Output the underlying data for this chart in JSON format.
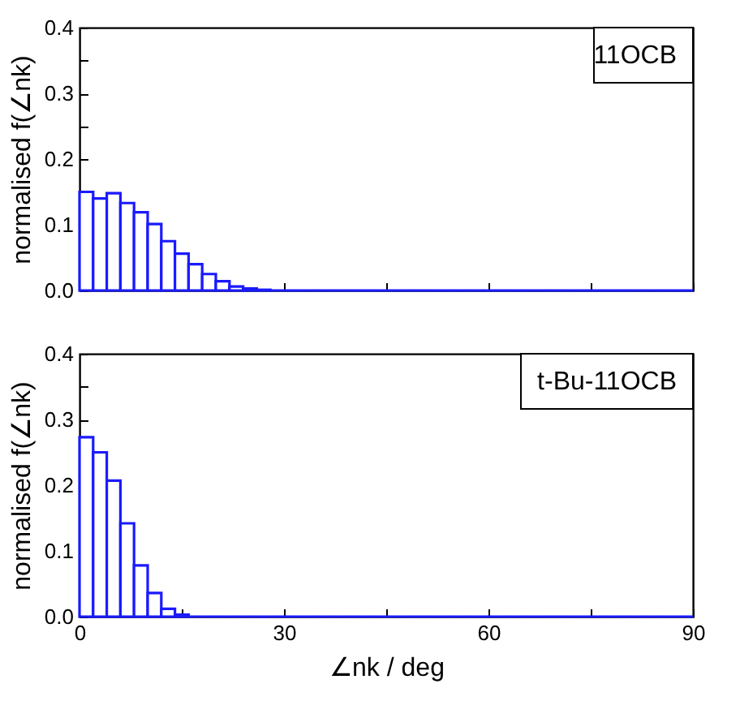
{
  "chart_data": [
    {
      "type": "histogram",
      "ylabel": "normalised f(∠nk)",
      "annotations": [
        "11OCB"
      ],
      "color": "#1a1aff",
      "bins": [
        0,
        2,
        4,
        6,
        8,
        10,
        12,
        14,
        16,
        18,
        20,
        22,
        24,
        26,
        28,
        30,
        32,
        34,
        36,
        38,
        40,
        42,
        44,
        46,
        48,
        50,
        52,
        54,
        56,
        58,
        60,
        62,
        64,
        66,
        68,
        70,
        72,
        74,
        76,
        78,
        80,
        82,
        84,
        86,
        88,
        90
      ],
      "values": [
        0.15,
        0.14,
        0.148,
        0.133,
        0.119,
        0.101,
        0.075,
        0.056,
        0.04,
        0.025,
        0.014,
        0.006,
        0.003,
        0.001,
        0,
        0,
        0,
        0,
        0,
        0,
        0,
        0,
        0,
        0,
        0,
        0,
        0,
        0,
        0,
        0,
        0,
        0,
        0,
        0,
        0,
        0,
        0,
        0,
        0,
        0,
        0,
        0,
        0,
        0,
        0
      ],
      "xlim": [
        0,
        90
      ],
      "xticks": [
        0,
        {
          "value": 15,
          "label": null
        },
        30,
        {
          "value": 45,
          "label": null
        },
        60,
        {
          "value": 75,
          "label": null
        },
        90
      ],
      "ylim": [
        0,
        0.4
      ],
      "yticks": [
        {
          "value": 0,
          "label": "0.0"
        },
        {
          "value": 0.05,
          "label": null
        },
        0.1,
        {
          "value": 0.15,
          "label": null
        },
        0.2,
        {
          "value": 0.25,
          "label": null
        },
        0.3,
        {
          "value": 0.35,
          "label": null
        },
        0.4
      ],
      "tick_labels": "y"
    },
    {
      "type": "histogram",
      "xlabel": "∠nk / deg",
      "ylabel": "normalised f(∠nk)",
      "annotations": [
        "t-Bu-11OCB"
      ],
      "color": "#1a1aff",
      "bins": [
        0,
        2,
        4,
        6,
        8,
        10,
        12,
        14,
        16,
        18,
        20,
        22,
        24,
        26,
        28,
        30,
        32,
        34,
        36,
        38,
        40,
        42,
        44,
        46,
        48,
        50,
        52,
        54,
        56,
        58,
        60,
        62,
        64,
        66,
        68,
        70,
        72,
        74,
        76,
        78,
        80,
        82,
        84,
        86,
        88,
        90
      ],
      "values": [
        0.273,
        0.25,
        0.207,
        0.142,
        0.078,
        0.036,
        0.012,
        0.003,
        0,
        0,
        0,
        0,
        0,
        0,
        0,
        0,
        0,
        0,
        0,
        0,
        0,
        0,
        0,
        0,
        0,
        0,
        0,
        0,
        0,
        0,
        0,
        0,
        0,
        0,
        0,
        0,
        0,
        0,
        0,
        0,
        0,
        0,
        0,
        0,
        0
      ],
      "xlim": [
        0,
        90
      ],
      "xticks": [
        0,
        {
          "value": 15,
          "label": null
        },
        30,
        {
          "value": 45,
          "label": null
        },
        60,
        {
          "value": 75,
          "label": null
        },
        90
      ],
      "ylim": [
        0,
        0.4
      ],
      "yticks": [
        {
          "value": 0,
          "label": "0.0"
        },
        {
          "value": 0.05,
          "label": null
        },
        0.1,
        {
          "value": 0.15,
          "label": null
        },
        0.2,
        {
          "value": 0.25,
          "label": null
        },
        0.3,
        {
          "value": 0.35,
          "label": null
        },
        0.4
      ]
    }
  ]
}
